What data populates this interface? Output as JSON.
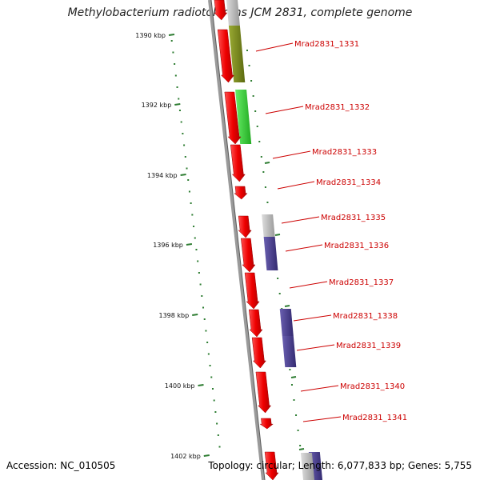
{
  "title": "Methylobacterium radiotolerans JCM 2831, complete genome",
  "footer": {
    "accession": "Accession: NC_010505",
    "summary": "Topology: circular; Length: 6,077,833 bp; Genes: 5,755"
  },
  "colors": {
    "strand": "#cc0000",
    "label": "#cc0000",
    "ruler_tick": "#2e7d32",
    "backbone": "#888888",
    "cog_olive": "#7a8a1a",
    "cog_green": "#33cc33",
    "cog_grey": "#b0b0b0",
    "cog_purple": "#4a3f8f"
  },
  "ruler": {
    "ticks": [
      {
        "label": "1390 kbp",
        "kbp": 1390
      },
      {
        "label": "1392 kbp",
        "kbp": 1392
      },
      {
        "label": "1394 kbp",
        "kbp": 1394
      },
      {
        "label": "1396 kbp",
        "kbp": 1396
      },
      {
        "label": "1398 kbp",
        "kbp": 1398
      },
      {
        "label": "1400 kbp",
        "kbp": 1400
      },
      {
        "label": "1402 kbp",
        "kbp": 1402
      }
    ]
  },
  "genes": [
    {
      "label": "Mrad2831_1331",
      "cog": "cog_olive"
    },
    {
      "label": "Mrad2831_1332",
      "cog": "cog_green"
    },
    {
      "label": "Mrad2831_1333",
      "cog": ""
    },
    {
      "label": "Mrad2831_1334",
      "cog": ""
    },
    {
      "label": "Mrad2831_1335",
      "cog": "cog_grey"
    },
    {
      "label": "Mrad2831_1336",
      "cog": "cog_purple"
    },
    {
      "label": "Mrad2831_1337",
      "cog": ""
    },
    {
      "label": "Mrad2831_1338",
      "cog": "cog_purple"
    },
    {
      "label": "Mrad2831_1339",
      "cog": "cog_purple"
    },
    {
      "label": "Mrad2831_1340",
      "cog": ""
    },
    {
      "label": "Mrad2831_1341",
      "cog": ""
    }
  ]
}
